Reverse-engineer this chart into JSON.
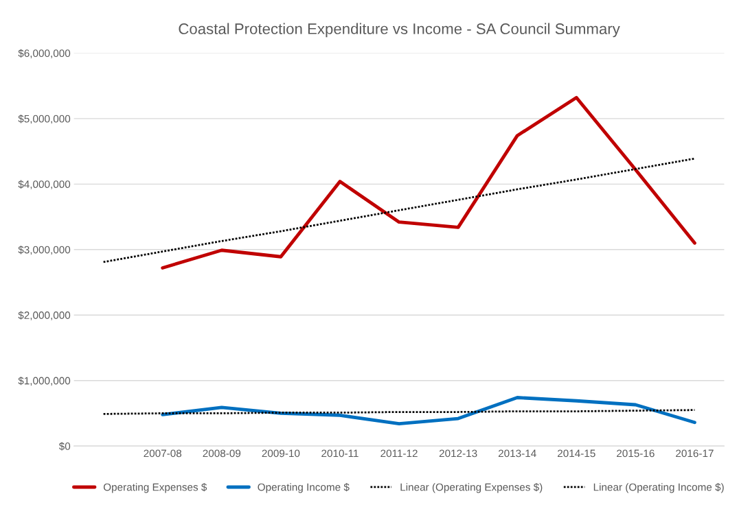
{
  "chart_data": {
    "type": "line",
    "title": "Coastal Protection Expenditure vs Income - SA Council Summary",
    "categories": [
      null,
      "2007-08",
      "2008-09",
      "2009-10",
      "2010-11",
      "2011-12",
      "2012-13",
      "2013-14",
      "2014-15",
      "2015-16",
      "2016-17"
    ],
    "series": [
      {
        "name": "Operating Expenses $",
        "color": "#c00000",
        "values": [
          null,
          2720000,
          2990000,
          2890000,
          4040000,
          3420000,
          3340000,
          4740000,
          5320000,
          4220000,
          3100000
        ]
      },
      {
        "name": "Operating Income $",
        "color": "#0070c0",
        "values": [
          null,
          480000,
          590000,
          500000,
          470000,
          340000,
          420000,
          740000,
          690000,
          630000,
          360000
        ]
      },
      {
        "name": "Linear (Operating Expenses $)",
        "color": "#000000",
        "line_style": "dotted",
        "values": [
          2810000,
          2970000,
          3130000,
          3280000,
          3440000,
          3600000,
          3760000,
          3920000,
          4070000,
          4230000,
          4390000
        ]
      },
      {
        "name": "Linear (Operating Income $)",
        "color": "#000000",
        "line_style": "dotted",
        "values": [
          490000,
          500000,
          500000,
          510000,
          510000,
          520000,
          520000,
          530000,
          530000,
          540000,
          550000
        ]
      }
    ],
    "ylim": [
      0,
      6000000
    ],
    "yticks": [
      {
        "value": 0,
        "label": "$0"
      },
      {
        "value": 1000000,
        "label": "$1,000,000"
      },
      {
        "value": 2000000,
        "label": "$2,000,000"
      },
      {
        "value": 3000000,
        "label": "$3,000,000"
      },
      {
        "value": 4000000,
        "label": "$4,000,000"
      },
      {
        "value": 5000000,
        "label": "$5,000,000"
      },
      {
        "value": 6000000,
        "label": "$6,000,000"
      }
    ],
    "grid": "y",
    "legend": "bottom",
    "line_style": "solid",
    "marker": "none"
  }
}
